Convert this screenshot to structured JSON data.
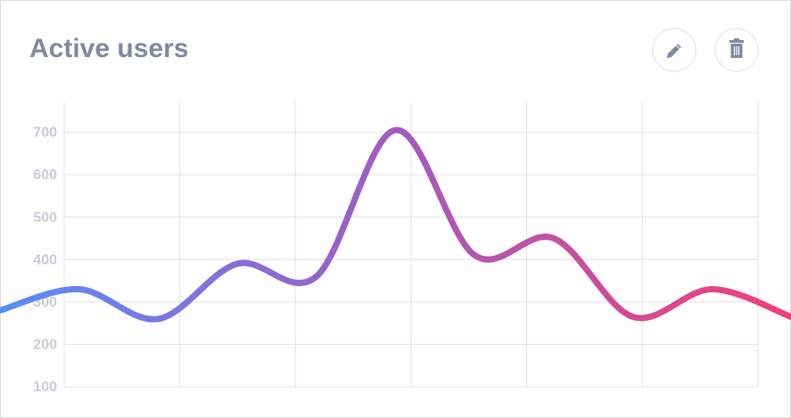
{
  "chart_data": {
    "type": "line",
    "title": "Active users",
    "categories": [
      null,
      null,
      null,
      null,
      null,
      null,
      null,
      null,
      null,
      null,
      null
    ],
    "values": [
      280,
      330,
      260,
      390,
      360,
      705,
      410,
      450,
      265,
      330,
      265
    ],
    "gradient": [
      "#5b8cf7",
      "#a35bbf",
      "#f43f78"
    ],
    "ylim": [
      100,
      770
    ],
    "yticks": [
      100,
      200,
      300,
      400,
      500,
      600,
      700
    ],
    "grid": true
  }
}
